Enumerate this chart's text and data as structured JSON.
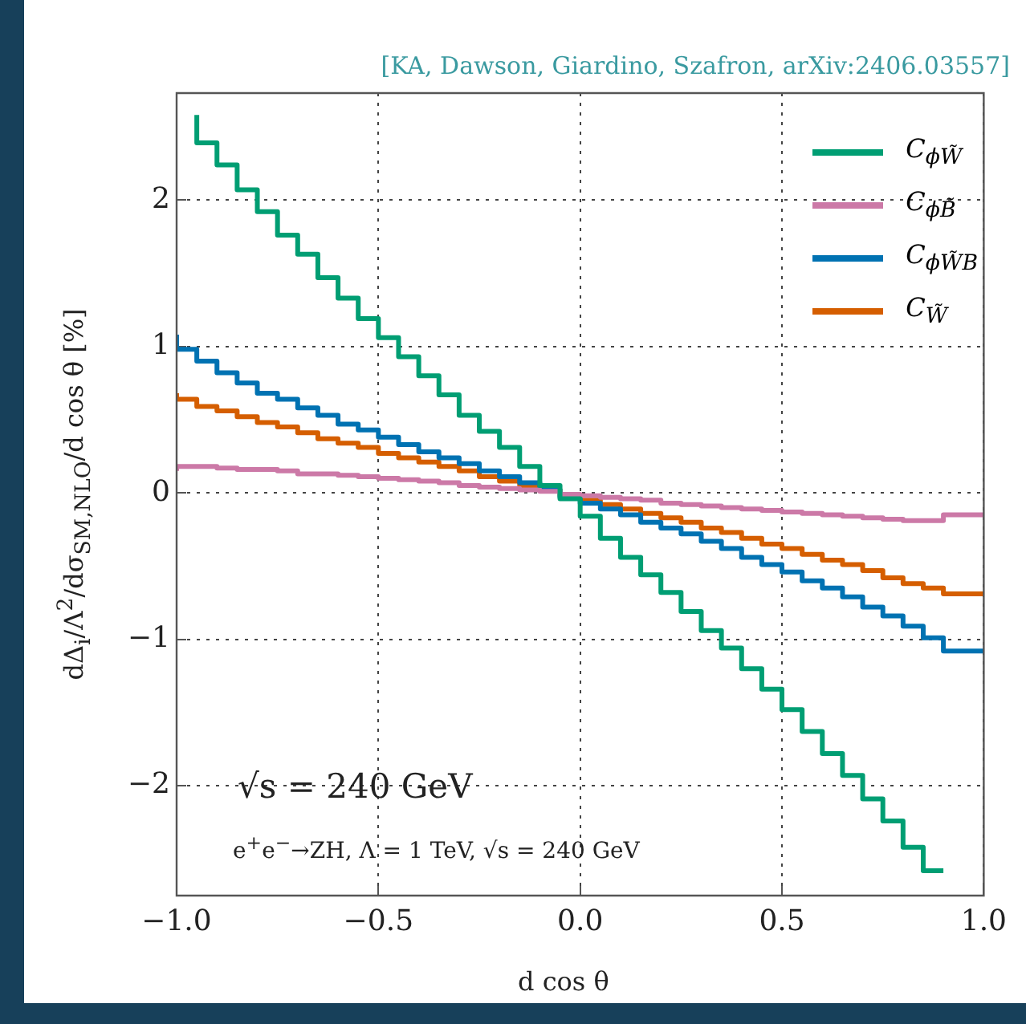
{
  "chart_data": {
    "type": "step",
    "title": "[KA, Dawson, Giardino, Szafron, arXiv:2406.03557]",
    "xlabel": "d cos θ",
    "ylabel": "dΔ$_{i}$/Λ$^{2}$/dσ$_{SM,NLO}$/d cos θ [%]",
    "annotations": [
      "√s = 240 GeV",
      "e$^{+}$e$^{−}$→ZH,  Λ = 1 TeV,  √s = 240 GeV"
    ],
    "x": [
      -1,
      -0.95,
      -0.9,
      -0.85,
      -0.8,
      -0.75,
      -0.7,
      -0.65,
      -0.6,
      -0.55,
      -0.5,
      -0.45,
      -0.4,
      -0.35,
      -0.3,
      -0.25,
      -0.2,
      -0.15,
      -0.1,
      -0.05,
      0,
      0.05,
      0.1,
      0.15,
      0.2,
      0.25,
      0.3,
      0.35,
      0.4,
      0.45,
      0.5,
      0.55,
      0.6,
      0.65,
      0.7,
      0.75,
      0.8,
      0.85,
      0.9,
      0.95,
      1
    ],
    "series": [
      {
        "name": "C$_{ϕW̃}$",
        "color": "#009e73",
        "values": [
          null,
          2.58,
          2.39,
          2.24,
          2.07,
          1.92,
          1.76,
          1.63,
          1.47,
          1.33,
          1.19,
          1.06,
          0.93,
          0.8,
          0.67,
          0.53,
          0.42,
          0.31,
          0.18,
          0.05,
          -0.04,
          -0.16,
          -0.31,
          -0.44,
          -0.56,
          -0.68,
          -0.81,
          -0.94,
          -1.06,
          -1.2,
          -1.34,
          -1.48,
          -1.63,
          -1.78,
          -1.93,
          -2.09,
          -2.24,
          -2.42,
          -2.58,
          null,
          null
        ]
      },
      {
        "name": "C$_{ϕB̃}$",
        "color": "#cc79a7",
        "values": [
          0.15,
          0.18,
          0.18,
          0.17,
          0.16,
          0.16,
          0.15,
          0.13,
          0.13,
          0.12,
          0.11,
          0.1,
          0.09,
          0.08,
          0.07,
          0.05,
          0.04,
          0.03,
          0.02,
          0.01,
          -0.01,
          -0.02,
          -0.03,
          -0.04,
          -0.05,
          -0.07,
          -0.08,
          -0.09,
          -0.1,
          -0.11,
          -0.12,
          -0.13,
          -0.14,
          -0.15,
          -0.16,
          -0.17,
          -0.18,
          -0.19,
          -0.19,
          -0.15,
          -0.15
        ]
      },
      {
        "name": "C$_{ϕW̃B}$",
        "color": "#0072b2",
        "values": [
          1.08,
          0.98,
          0.9,
          0.82,
          0.75,
          0.68,
          0.64,
          0.58,
          0.53,
          0.47,
          0.43,
          0.38,
          0.33,
          0.28,
          0.24,
          0.2,
          0.15,
          0.11,
          0.07,
          0.02,
          -0.03,
          -0.07,
          -0.11,
          -0.15,
          -0.2,
          -0.24,
          -0.28,
          -0.33,
          -0.38,
          -0.44,
          -0.49,
          -0.54,
          -0.6,
          -0.65,
          -0.71,
          -0.78,
          -0.84,
          -0.91,
          -0.99,
          -1.08,
          -1.08
        ]
      },
      {
        "name": "C$_{W̃}$",
        "color": "#d55e00",
        "values": [
          0.68,
          0.64,
          0.59,
          0.56,
          0.52,
          0.48,
          0.45,
          0.41,
          0.37,
          0.34,
          0.31,
          0.27,
          0.24,
          0.21,
          0.18,
          0.15,
          0.11,
          0.08,
          0.05,
          0.02,
          -0.02,
          -0.05,
          -0.08,
          -0.11,
          -0.14,
          -0.17,
          -0.2,
          -0.24,
          -0.27,
          -0.31,
          -0.35,
          -0.38,
          -0.42,
          -0.46,
          -0.49,
          -0.53,
          -0.58,
          -0.62,
          -0.65,
          -0.69,
          -0.69
        ]
      }
    ],
    "xlim": [
      -1,
      1
    ],
    "xticks": [
      {
        "value": -1,
        "label": "−1.0"
      },
      {
        "value": -0.5,
        "label": "−0.5"
      },
      {
        "value": 0,
        "label": "0.0"
      },
      {
        "value": 0.5,
        "label": "0.5"
      },
      {
        "value": 1,
        "label": "1.0"
      }
    ],
    "ylim": [
      -2.75,
      2.73
    ],
    "yticks": [
      {
        "value": -2,
        "label": "−2"
      },
      {
        "value": -1,
        "label": "−1"
      },
      0,
      1,
      2
    ],
    "grid": true,
    "legend": "top right",
    "line_style": "solid"
  }
}
